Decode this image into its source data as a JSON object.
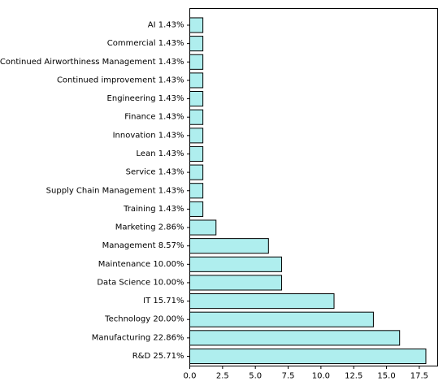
{
  "chart_data": {
    "type": "bar",
    "orientation": "horizontal",
    "categories": [
      "AI  1.43%",
      "Commercial  1.43%",
      "Continued Airworthiness Management  1.43%",
      "Continued improvement  1.43%",
      "Engineering  1.43%",
      "Finance  1.43%",
      "Innovation  1.43%",
      "Lean  1.43%",
      "Service  1.43%",
      "Supply Chain Management  1.43%",
      "Training  1.43%",
      "Marketing  2.86%",
      "Management  8.57%",
      "Maintenance  10.00%",
      "Data Science  10.00%",
      "IT  15.71%",
      "Technology  20.00%",
      "Manufacturing  22.86%",
      "R&D  25.71%"
    ],
    "values": [
      1,
      1,
      1,
      1,
      1,
      1,
      1,
      1,
      1,
      1,
      1,
      2,
      6,
      7,
      7,
      11,
      14,
      16,
      18
    ],
    "xlim": [
      0,
      18.9
    ],
    "xticks": [
      "0.0",
      "2.5",
      "5.0",
      "7.5",
      "10.0",
      "12.5",
      "15.0",
      "17.5"
    ],
    "title": "",
    "xlabel": "",
    "ylabel": "",
    "grid": false,
    "legend": "none",
    "colors": {
      "bar_fill": "#afeeee",
      "bar_edge": "#000000",
      "axes": "#000000",
      "background": "#ffffff"
    }
  }
}
